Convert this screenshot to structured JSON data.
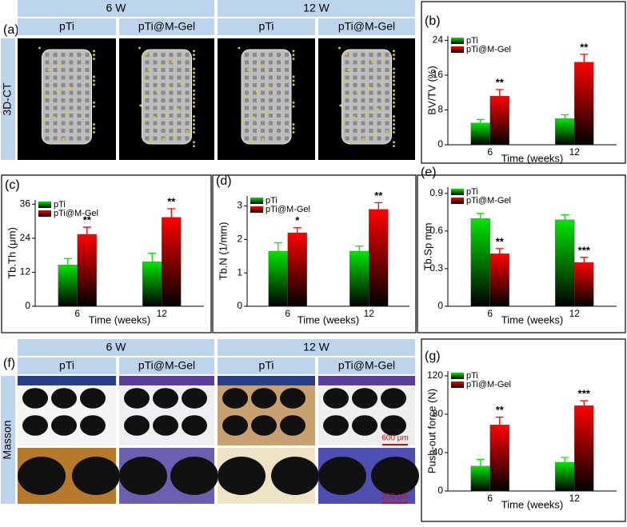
{
  "figure": {
    "a": {
      "label": "(a)",
      "groups": [
        "6 W",
        "12 W"
      ],
      "columns": [
        "pTi",
        "pTi@M-Gel",
        "pTi",
        "pTi@M-Gel"
      ],
      "row_label": "3D-CT"
    },
    "f": {
      "label": "(f)",
      "groups": [
        "6 W",
        "12 W"
      ],
      "columns": [
        "pTi",
        "pTi@M-Gel",
        "pTi",
        "pTi@M-Gel"
      ],
      "row_label": "Masson",
      "scale_bars": [
        "600 μm",
        "200 μm"
      ]
    }
  },
  "chart_data": [
    {
      "type": "bar",
      "panel": "(b)",
      "x_label": "Time (weeks)",
      "y_label": "BV/TV (%)",
      "categories": [
        "6",
        "12"
      ],
      "series": [
        {
          "name": "pTi",
          "color": "#00e600",
          "values": [
            5.0,
            6.0
          ],
          "errors": [
            0.8,
            0.9
          ]
        },
        {
          "name": "pTi@M-Gel",
          "color": "#ff0000",
          "values": [
            11.2,
            19.0
          ],
          "errors": [
            1.5,
            1.8
          ],
          "significance": [
            "**",
            "**"
          ]
        }
      ],
      "ylim": [
        0,
        25
      ],
      "yticks": [
        0,
        8,
        16,
        24
      ]
    },
    {
      "type": "bar",
      "panel": "(c)",
      "x_label": "Time (weeks)",
      "y_label": "Tb.Th (μm)",
      "categories": [
        "6",
        "12"
      ],
      "series": [
        {
          "name": "pTi",
          "color": "#00e600",
          "values": [
            14.6,
            15.7
          ],
          "errors": [
            2.2,
            3.0
          ]
        },
        {
          "name": "pTi@M-Gel",
          "color": "#ff0000",
          "values": [
            25.4,
            31.4
          ],
          "errors": [
            2.5,
            3.0
          ],
          "significance": [
            "**",
            "**"
          ]
        }
      ],
      "ylim": [
        0,
        37.5
      ],
      "yticks": [
        0,
        12,
        24,
        36
      ]
    },
    {
      "type": "bar",
      "panel": "(d)",
      "x_label": "Time (weeks)",
      "y_label": "Tb.N (1/mm)",
      "categories": [
        "6",
        "12"
      ],
      "series": [
        {
          "name": "pTi",
          "color": "#00e600",
          "values": [
            1.65,
            1.65
          ],
          "errors": [
            0.25,
            0.15
          ]
        },
        {
          "name": "pTi@M-Gel",
          "color": "#ff0000",
          "values": [
            2.2,
            2.9
          ],
          "errors": [
            0.15,
            0.2
          ],
          "significance": [
            "*",
            "**"
          ]
        }
      ],
      "ylim": [
        0,
        3.3
      ],
      "yticks": [
        0,
        1,
        2,
        3
      ]
    },
    {
      "type": "bar",
      "panel": "(e)",
      "x_label": "Time (weeks)",
      "y_label": "Tb.Sp mm",
      "categories": [
        "6",
        "12"
      ],
      "series": [
        {
          "name": "pTi",
          "color": "#00e600",
          "values": [
            0.7,
            0.69
          ],
          "errors": [
            0.04,
            0.04
          ]
        },
        {
          "name": "pTi@M-Gel",
          "color": "#ff0000",
          "values": [
            0.42,
            0.35
          ],
          "errors": [
            0.04,
            0.04
          ],
          "significance": [
            "**",
            "***"
          ]
        }
      ],
      "ylim": [
        0,
        0.95
      ],
      "yticks": [
        0,
        {
          "value": 0.3,
          "label": "0.3"
        },
        {
          "value": 0.6,
          "label": "0.6"
        },
        {
          "value": 0.9,
          "label": "0.9"
        }
      ]
    },
    {
      "type": "bar",
      "panel": "(g)",
      "x_label": "Time (weeks)",
      "y_label": "Push-out force (N)",
      "categories": [
        "6",
        "12"
      ],
      "series": [
        {
          "name": "pTi",
          "color": "#00e600",
          "values": [
            26,
            30
          ],
          "errors": [
            7,
            5
          ]
        },
        {
          "name": "pTi@M-Gel",
          "color": "#ff0000",
          "values": [
            69,
            89
          ],
          "errors": [
            8,
            5
          ],
          "significance": [
            "**",
            "***"
          ]
        }
      ],
      "ylim": [
        0,
        125
      ],
      "yticks": [
        0,
        40,
        80,
        120
      ]
    }
  ]
}
